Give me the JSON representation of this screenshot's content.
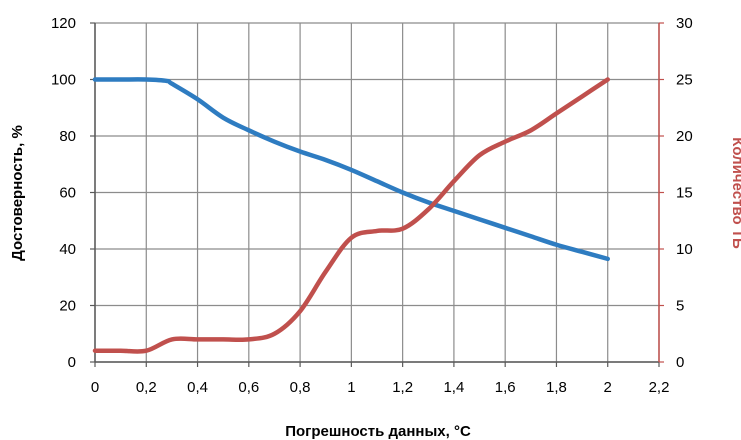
{
  "chart_data": {
    "type": "line",
    "xlabel": "Погрешность данных, °C",
    "ylabel": "Достоверность, %",
    "y2label": "Количество ТБ",
    "xlim": [
      0,
      2.2
    ],
    "ylim": [
      0,
      120
    ],
    "y2lim": [
      0,
      30
    ],
    "grid": true,
    "x_ticks": [
      "0",
      "0,2",
      "0,4",
      "0,6",
      "0,8",
      "1",
      "1,2",
      "1,4",
      "1,6",
      "1,8",
      "2",
      "2,2"
    ],
    "y_ticks": [
      "0",
      "20",
      "40",
      "60",
      "80",
      "100",
      "120"
    ],
    "y2_ticks": [
      "0",
      "5",
      "10",
      "15",
      "20",
      "25",
      "30"
    ],
    "series": [
      {
        "axis": "left",
        "color": "#2e7cc1",
        "points": [
          [
            0,
            100
          ],
          [
            0.1,
            100
          ],
          [
            0.2,
            100
          ],
          [
            0.28,
            99.5
          ],
          [
            0.3,
            98.5
          ],
          [
            0.4,
            93
          ],
          [
            0.5,
            86.5
          ],
          [
            0.6,
            82
          ],
          [
            0.7,
            78
          ],
          [
            0.8,
            74.5
          ],
          [
            0.9,
            71.5
          ],
          [
            1.0,
            68
          ],
          [
            1.1,
            64
          ],
          [
            1.2,
            60
          ],
          [
            1.3,
            56.5
          ],
          [
            1.4,
            53.5
          ],
          [
            1.5,
            50.5
          ],
          [
            1.6,
            47.5
          ],
          [
            1.7,
            44.5
          ],
          [
            1.8,
            41.5
          ],
          [
            1.9,
            39
          ],
          [
            2.0,
            36.5
          ]
        ]
      },
      {
        "axis": "right",
        "color": "#c0504d",
        "points": [
          [
            0,
            1
          ],
          [
            0.1,
            1
          ],
          [
            0.2,
            1
          ],
          [
            0.3,
            2
          ],
          [
            0.4,
            2
          ],
          [
            0.5,
            2
          ],
          [
            0.6,
            2
          ],
          [
            0.7,
            2.5
          ],
          [
            0.8,
            4.5
          ],
          [
            0.9,
            8
          ],
          [
            1.0,
            11
          ],
          [
            1.1,
            11.6
          ],
          [
            1.2,
            11.8
          ],
          [
            1.3,
            13.5
          ],
          [
            1.4,
            16
          ],
          [
            1.5,
            18.3
          ],
          [
            1.6,
            19.5
          ],
          [
            1.7,
            20.5
          ],
          [
            1.8,
            22
          ],
          [
            1.9,
            23.5
          ],
          [
            2.0,
            25
          ]
        ]
      }
    ],
    "left_axis_color": "#000000",
    "right_axis_color": "#c0504d",
    "grid_color": "#8c8c8c"
  }
}
